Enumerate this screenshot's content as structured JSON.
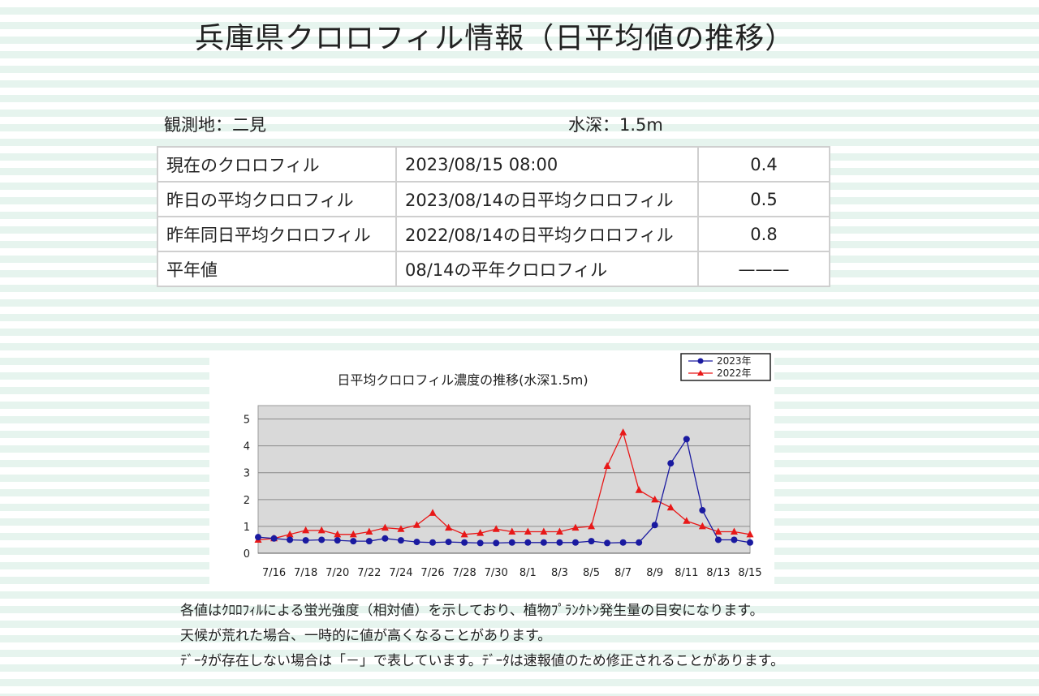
{
  "page": {
    "title": "兵庫県クロロフィル情報（日平均値の推移）",
    "station": "観測地：二見",
    "depth": "水深：1.5m"
  },
  "table": {
    "rows": [
      {
        "label": "現在のクロロフィル",
        "desc": "2023/08/15 08:00",
        "value": "0.4"
      },
      {
        "label": "昨日の平均クロロフィル",
        "desc": "2023/08/14の日平均クロロフィル",
        "value": "0.5"
      },
      {
        "label": "昨年同日平均クロロフィル",
        "desc": "2022/08/14の日平均クロロフィル",
        "value": "0.8"
      },
      {
        "label": "平年値",
        "desc": "08/14の平年クロロフィル",
        "value": "———"
      }
    ]
  },
  "notes": [
    "各値はｸﾛﾛﾌｨﾙによる蛍光強度（相対値）を示しており、植物ﾌﾟﾗﾝｸﾄﾝ発生量の目安になります。",
    "天候が荒れた場合、一時的に値が高くなることがあります。",
    "ﾃﾞｰﾀが存在しない場合は「－」で表しています。ﾃﾞｰﾀは速報値のため修正されることがあります。"
  ],
  "chart_data": {
    "type": "line",
    "title": "日平均クロロフィル濃度の推移(水深1.5m)",
    "xlabel": "",
    "ylabel": "",
    "ylim": [
      0,
      5.5
    ],
    "yticks": [
      0,
      1,
      2,
      3,
      4,
      5
    ],
    "grid": true,
    "legend": "top-right",
    "x": [
      "7/15",
      "7/16",
      "7/17",
      "7/18",
      "7/19",
      "7/20",
      "7/21",
      "7/22",
      "7/23",
      "7/24",
      "7/25",
      "7/26",
      "7/27",
      "7/28",
      "7/29",
      "7/30",
      "7/31",
      "8/1",
      "8/2",
      "8/3",
      "8/4",
      "8/5",
      "8/6",
      "8/7",
      "8/8",
      "8/9",
      "8/10",
      "8/11",
      "8/12",
      "8/13",
      "8/14",
      "8/15"
    ],
    "xtick_labels": [
      "7/16",
      "7/18",
      "7/20",
      "7/22",
      "7/24",
      "7/26",
      "7/28",
      "7/30",
      "8/1",
      "8/3",
      "8/5",
      "8/7",
      "8/9",
      "8/11",
      "8/13",
      "8/15"
    ],
    "series": [
      {
        "name": "2023年",
        "color": "#1a1aa0",
        "marker": "circle",
        "values": [
          0.6,
          0.55,
          0.5,
          0.48,
          0.5,
          0.48,
          0.45,
          0.45,
          0.55,
          0.48,
          0.42,
          0.4,
          0.42,
          0.4,
          0.38,
          0.38,
          0.4,
          0.4,
          0.4,
          0.4,
          0.4,
          0.45,
          0.38,
          0.4,
          0.4,
          1.05,
          3.35,
          4.25,
          1.6,
          0.5,
          0.5,
          0.4
        ]
      },
      {
        "name": "2022年",
        "color": "#e81818",
        "marker": "triangle",
        "values": [
          0.5,
          0.55,
          0.7,
          0.85,
          0.85,
          0.7,
          0.7,
          0.8,
          0.95,
          0.9,
          1.05,
          1.5,
          0.95,
          0.7,
          0.75,
          0.9,
          0.8,
          0.8,
          0.8,
          0.8,
          0.95,
          1.0,
          3.25,
          4.5,
          2.35,
          2.0,
          1.7,
          1.2,
          1.0,
          0.8,
          0.8,
          0.7
        ]
      }
    ]
  }
}
